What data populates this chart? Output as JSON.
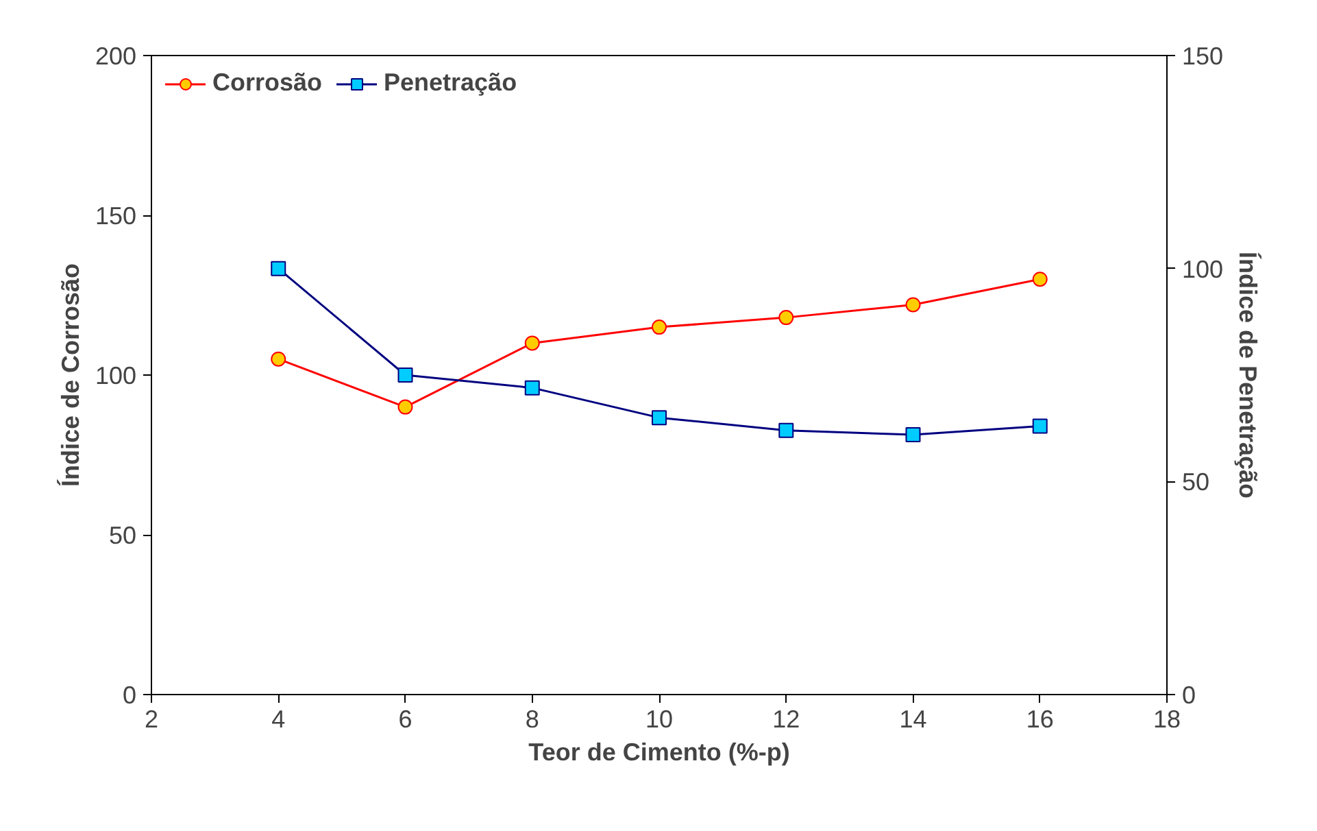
{
  "chart_data": {
    "type": "line",
    "xlabel": "Teor de Cimento (%-p)",
    "ylabel": "Índice de Corrosão",
    "y2label": "Índice de Penetração",
    "x": [
      4,
      6,
      8,
      10,
      12,
      14,
      16
    ],
    "series": [
      {
        "name": "Corrosão",
        "color": "#ff0000",
        "marker": "circle",
        "values": [
          105,
          90,
          110,
          115,
          118,
          122,
          130
        ]
      },
      {
        "name": "Penetração",
        "color": "#000080",
        "marker": "square",
        "axis": "y2",
        "values": [
          100,
          75,
          72,
          65,
          62,
          61,
          63
        ]
      }
    ],
    "xlim": [
      2,
      18
    ],
    "xticks": [
      2,
      4,
      6,
      8,
      10,
      12,
      14,
      16,
      18
    ],
    "ylim": [
      0,
      200
    ],
    "yticks": [
      0,
      50,
      100,
      150,
      200
    ],
    "y2lim": [
      0,
      150
    ],
    "y2ticks": [
      0,
      50,
      100,
      150
    ],
    "grid": false,
    "legend": "top left"
  }
}
